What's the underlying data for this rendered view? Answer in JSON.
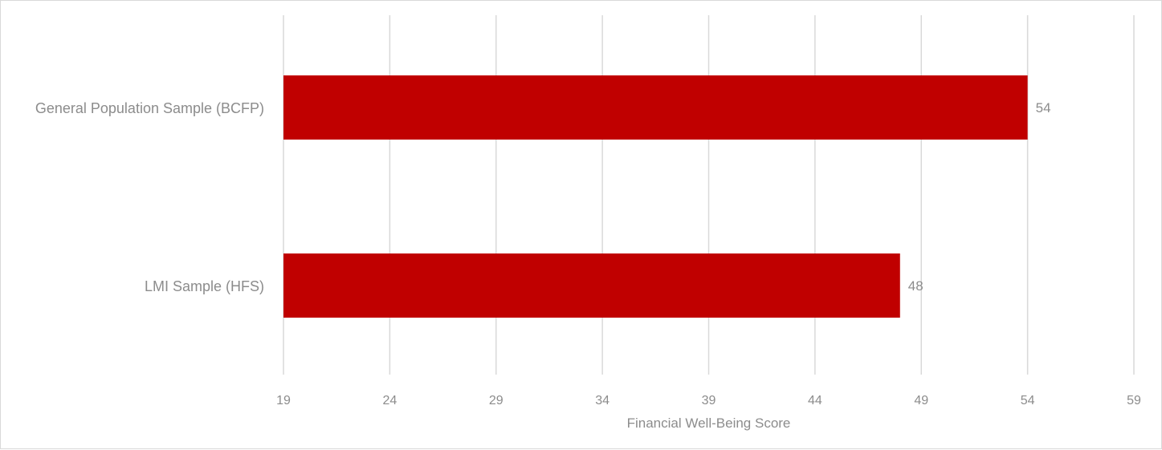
{
  "chart_data": {
    "type": "bar",
    "orientation": "horizontal",
    "title": "",
    "categories": [
      "General Population Sample (BCFP)",
      "LMI Sample (HFS)"
    ],
    "series": [
      {
        "values": [
          54,
          48
        ],
        "color": "#c00000"
      }
    ],
    "data_labels": [
      "54",
      "48"
    ],
    "xlabel": "Financial Well-Being Score",
    "ylabel": "",
    "xlim": [
      19,
      59
    ],
    "xticks": [
      19,
      24,
      29,
      34,
      39,
      44,
      49,
      54,
      59
    ],
    "xtick_labels": [
      "19",
      "24",
      "29",
      "34",
      "39",
      "44",
      "49",
      "54",
      "59"
    ],
    "grid": "vertical",
    "legend": "none"
  }
}
